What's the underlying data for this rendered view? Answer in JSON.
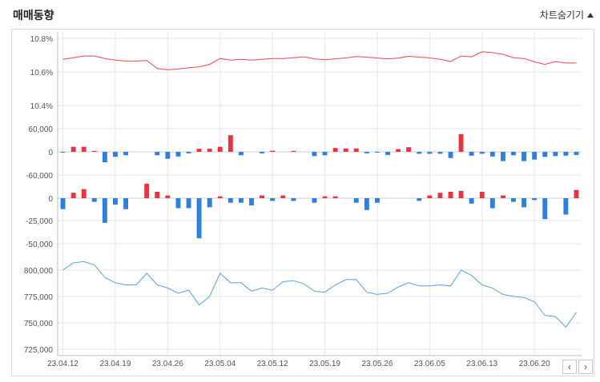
{
  "header": {
    "title": "매매동향",
    "toggle_label": "차트숨기기"
  },
  "icons": {
    "toggle": "triangle-up-icon",
    "prev": "chevron-left-icon",
    "next": "chevron-right-icon"
  },
  "nav": {
    "prev_label": "‹",
    "next_label": "›"
  },
  "colors": {
    "price": "#e8474f",
    "up": "#e8343f",
    "down": "#2f7fdc",
    "volume": "#5aa0e6",
    "grid": "#e6e6e6",
    "axis_text": "#555555"
  },
  "chart_data": {
    "type": "combined",
    "x_tick_labels": [
      "23.04.12",
      "23.04.19",
      "23.04.26",
      "23.05.04",
      "23.05.12",
      "23.05.19",
      "23.05.26",
      "23.06.05",
      "23.06.13",
      "23.06.20"
    ],
    "x_tick_indices": [
      0,
      5,
      10,
      15,
      20,
      25,
      30,
      35,
      40,
      45
    ],
    "n_points": 50,
    "panels": [
      {
        "name": "price",
        "type": "line",
        "tick_labels": [
          "10.8%",
          "10.6%",
          "10.4%"
        ],
        "tick_values": [
          10.8,
          10.6,
          10.4
        ],
        "ylim": [
          10.4,
          10.8
        ],
        "values": [
          10.675,
          10.685,
          10.695,
          10.695,
          10.68,
          10.67,
          10.665,
          10.665,
          10.668,
          10.62,
          10.613,
          10.617,
          10.625,
          10.63,
          10.645,
          10.68,
          10.67,
          10.675,
          10.67,
          10.675,
          10.68,
          10.68,
          10.685,
          10.69,
          10.678,
          10.673,
          10.678,
          10.684,
          10.692,
          10.688,
          10.683,
          10.678,
          10.683,
          10.693,
          10.688,
          10.684,
          10.675,
          10.662,
          10.695,
          10.69,
          10.72,
          10.715,
          10.705,
          10.685,
          10.68,
          10.66,
          10.645,
          10.662,
          10.653,
          10.653
        ]
      },
      {
        "name": "bars1",
        "type": "bar",
        "tick_labels": [
          "60,000",
          "0",
          "-60,000"
        ],
        "tick_values": [
          60000,
          0,
          -60000
        ],
        "ylim": [
          -60000,
          60000
        ],
        "values": [
          -2000,
          13000,
          13000,
          2500,
          -27000,
          -13000,
          -9000,
          0,
          0,
          -9000,
          -18000,
          -12000,
          -4000,
          8000,
          8000,
          13000,
          43000,
          -9000,
          0,
          -4000,
          3000,
          0,
          2500,
          0,
          -11000,
          -9000,
          10000,
          9000,
          9000,
          -4000,
          -1000,
          -8000,
          7000,
          12000,
          -5000,
          -5000,
          -5000,
          -16000,
          46000,
          -10000,
          -5000,
          -12000,
          -24000,
          -9000,
          -24000,
          -20000,
          -13000,
          -11000,
          -10000,
          -8000
        ]
      },
      {
        "name": "bars2",
        "type": "bar",
        "tick_labels": [
          "0",
          "-25,000",
          "-50,000"
        ],
        "tick_values": [
          0,
          -25000,
          -50000
        ],
        "ylim": [
          -50000,
          25000
        ],
        "values": [
          -12000,
          6000,
          10000,
          -4000,
          -27000,
          -7000,
          -12000,
          0,
          16000,
          7000,
          3000,
          -11000,
          -11000,
          -44000,
          -10000,
          2000,
          -5000,
          -5000,
          -8000,
          3000,
          -3000,
          3000,
          -3000,
          0,
          -5000,
          2000,
          2000,
          0,
          -5000,
          -13000,
          -5000,
          0,
          0,
          0,
          -3000,
          3000,
          6000,
          7000,
          8000,
          -6000,
          7000,
          -11000,
          3000,
          -4000,
          -10000,
          -2000,
          -23000,
          0,
          -18000,
          9000
        ]
      },
      {
        "name": "volume",
        "type": "line",
        "tick_labels": [
          "800,000",
          "775,000",
          "750,000",
          "725,000"
        ],
        "tick_values": [
          800000,
          775000,
          750000,
          725000
        ],
        "ylim": [
          725000,
          812500
        ],
        "values": [
          800000,
          807000,
          808000,
          805000,
          793000,
          788000,
          786000,
          786000,
          797000,
          786000,
          783000,
          778000,
          781000,
          767000,
          775000,
          797000,
          788000,
          788000,
          780000,
          783000,
          781000,
          789000,
          790000,
          787000,
          780000,
          779000,
          786000,
          791000,
          791000,
          779000,
          777000,
          778000,
          784000,
          788000,
          785000,
          785000,
          786000,
          785000,
          800000,
          795000,
          786000,
          783000,
          777000,
          775000,
          774000,
          770000,
          757000,
          756000,
          746000,
          760000
        ]
      }
    ]
  }
}
